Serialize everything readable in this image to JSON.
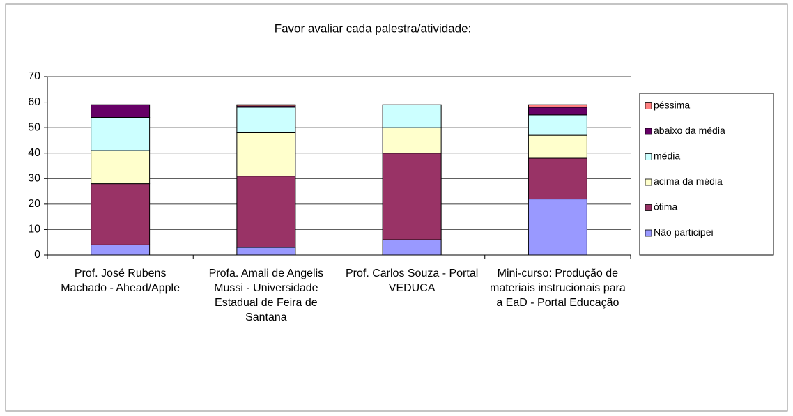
{
  "chart_data": {
    "type": "stacked_bar",
    "title": "Favor avaliar cada palestra/atividade:",
    "categories": [
      "Prof. José Rubens Machado - Ahead/Apple",
      "Profa. Amali de Angelis Mussi - Universidade Estadual de Feira de Santana",
      "Prof. Carlos Souza - Portal VEDUCA",
      "Mini-curso: Produção de materiais instrucionais para a EaD - Portal Educação"
    ],
    "series": [
      {
        "name": "Não participei",
        "color": "#9999ff",
        "values": [
          4,
          3,
          6,
          22
        ]
      },
      {
        "name": "ótima",
        "color": "#993366",
        "values": [
          24,
          28,
          34,
          16
        ]
      },
      {
        "name": "acima da média",
        "color": "#ffffcc",
        "values": [
          13,
          17,
          10,
          9
        ]
      },
      {
        "name": "média",
        "color": "#ccffff",
        "values": [
          13,
          10,
          9,
          8
        ]
      },
      {
        "name": "abaixo da média",
        "color": "#660066",
        "values": [
          5,
          0.5,
          0,
          3
        ]
      },
      {
        "name": "péssima",
        "color": "#ff8080",
        "values": [
          0,
          0.5,
          0,
          1
        ]
      }
    ],
    "ylim": [
      0,
      70
    ],
    "yticks": [
      0,
      10,
      20,
      30,
      40,
      50,
      60,
      70
    ],
    "grid": true,
    "legend": "right"
  }
}
